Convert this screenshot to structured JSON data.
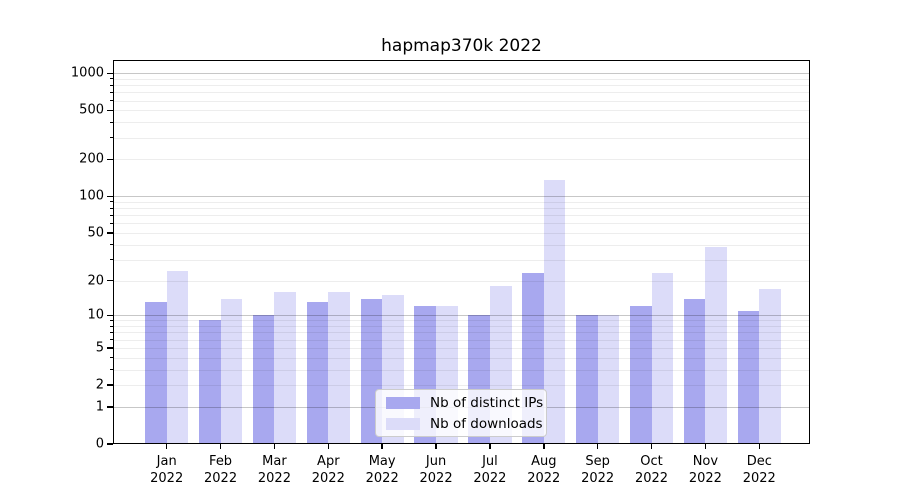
{
  "chart_data": {
    "type": "bar",
    "title": "hapmap370k 2022",
    "categories": [
      "Jan",
      "Feb",
      "Mar",
      "Apr",
      "May",
      "Jun",
      "Jul",
      "Aug",
      "Sep",
      "Oct",
      "Nov",
      "Dec"
    ],
    "category_year_line": "2022",
    "series": [
      {
        "name": "Nb of distinct IPs",
        "color": "#a8a8ef",
        "values": [
          13,
          9,
          10,
          13,
          14,
          12,
          10,
          23,
          10,
          12,
          14,
          11
        ]
      },
      {
        "name": "Nb of downloads",
        "color": "#dcdcf9",
        "values": [
          24,
          14,
          16,
          16,
          15,
          12,
          18,
          135,
          10,
          23,
          38,
          17
        ]
      }
    ],
    "y_axis": {
      "scale": "log1p",
      "tick_labels": [
        0,
        1,
        2,
        5,
        10,
        20,
        50,
        100,
        200,
        500,
        1000
      ],
      "major_grid_values": [
        1,
        10,
        100,
        1000
      ],
      "minor_grid_values": [
        2,
        3,
        4,
        5,
        6,
        7,
        8,
        9,
        20,
        30,
        40,
        50,
        60,
        70,
        80,
        90,
        200,
        300,
        400,
        500,
        600,
        700,
        800,
        900
      ],
      "ymin": 0,
      "ymax": 1282
    },
    "legend": {
      "position": "inside-bottom-center",
      "entries": [
        "Nb of distinct IPs",
        "Nb of downloads"
      ]
    },
    "grid": true
  }
}
